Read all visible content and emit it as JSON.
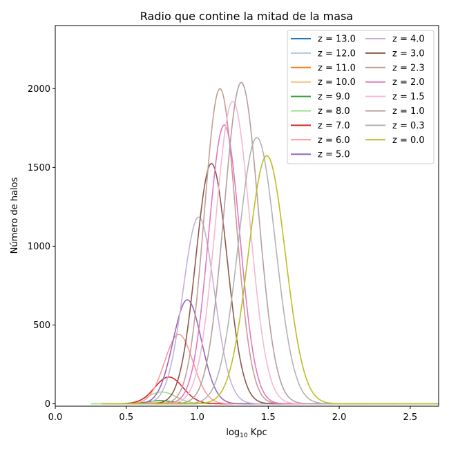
{
  "chart_data": {
    "type": "line",
    "title": "Radio que contine la mitad de la masa",
    "xlabel": "log",
    "xlabel_sub": "10",
    "xlabel_rest": " Kpc",
    "ylabel": "Número de halos",
    "xlim": [
      0.0,
      2.7
    ],
    "ylim": [
      -15,
      2400
    ],
    "xticks": [
      0.0,
      0.5,
      1.0,
      1.5,
      2.0,
      2.5
    ],
    "xtick_labels": [
      "0.0",
      "0.5",
      "1.0",
      "1.5",
      "2.0",
      "2.5"
    ],
    "yticks": [
      0,
      500,
      1000,
      1500,
      2000
    ],
    "ytick_labels": [
      "0",
      "500",
      "1000",
      "1500",
      "2000"
    ],
    "grid": false,
    "legend_position": "top-right",
    "legend_columns": 2,
    "series": [
      {
        "name": "z = 13.0",
        "color": "#1f77b4",
        "peak_x": 0.7,
        "peak_y": 1,
        "sigma": 0.08,
        "x_start": 0.55,
        "x_end": 0.85
      },
      {
        "name": "z = 12.0",
        "color": "#aec7e8",
        "peak_x": 0.7,
        "peak_y": 2,
        "sigma": 0.08,
        "x_start": 0.52,
        "x_end": 0.88
      },
      {
        "name": "z = 11.0",
        "color": "#ff7f0e",
        "peak_x": 0.72,
        "peak_y": 4,
        "sigma": 0.08,
        "x_start": 0.5,
        "x_end": 0.92
      },
      {
        "name": "z = 10.0",
        "color": "#ffbb78",
        "peak_x": 0.73,
        "peak_y": 8,
        "sigma": 0.08,
        "x_start": 0.48,
        "x_end": 0.95
      },
      {
        "name": "z = 9.0",
        "color": "#2ca02c",
        "peak_x": 0.74,
        "peak_y": 20,
        "sigma": 0.09,
        "x_start": 0.4,
        "x_end": 1.0
      },
      {
        "name": "z = 8.0",
        "color": "#98df8a",
        "peak_x": 0.75,
        "peak_y": 75,
        "sigma": 0.1,
        "x_start": 0.25,
        "x_end": 1.1
      },
      {
        "name": "z = 7.0",
        "color": "#d62728",
        "peak_x": 0.8,
        "peak_y": 170,
        "sigma": 0.1,
        "x_start": 0.33,
        "x_end": 1.25
      },
      {
        "name": "z = 6.0",
        "color": "#ff9896",
        "peak_x": 0.87,
        "peak_y": 440,
        "sigma": 0.1,
        "x_start": 0.33,
        "x_end": 1.4
      },
      {
        "name": "z = 5.0",
        "color": "#9467bd",
        "peak_x": 0.93,
        "peak_y": 660,
        "sigma": 0.1,
        "x_start": 0.33,
        "x_end": 1.6
      },
      {
        "name": "z = 4.0",
        "color": "#c5b0d5",
        "peak_x": 1.01,
        "peak_y": 1185,
        "sigma": 0.11,
        "x_start": 0.33,
        "x_end": 1.8
      },
      {
        "name": "z = 3.0",
        "color": "#8c564b",
        "peak_x": 1.1,
        "peak_y": 1525,
        "sigma": 0.11,
        "x_start": 0.33,
        "x_end": 1.9
      },
      {
        "name": "z = 2.3",
        "color": "#c49c94",
        "peak_x": 1.16,
        "peak_y": 2000,
        "sigma": 0.11,
        "x_start": 0.33,
        "x_end": 2.0
      },
      {
        "name": "z = 2.0",
        "color": "#e377c2",
        "peak_x": 1.19,
        "peak_y": 1770,
        "sigma": 0.11,
        "x_start": 0.33,
        "x_end": 2.1
      },
      {
        "name": "z = 1.5",
        "color": "#f7b6d2",
        "peak_x": 1.25,
        "peak_y": 1920,
        "sigma": 0.12,
        "x_start": 0.33,
        "x_end": 2.2
      },
      {
        "name": "z = 1.0",
        "color": "#b79d9d",
        "peak_x": 1.31,
        "peak_y": 2040,
        "sigma": 0.12,
        "x_start": 0.33,
        "x_end": 2.4
      },
      {
        "name": "z = 0.3",
        "color": "#b2b2b2",
        "peak_x": 1.42,
        "peak_y": 1690,
        "sigma": 0.13,
        "x_start": 0.33,
        "x_end": 2.7
      },
      {
        "name": "z = 0.0",
        "color": "#bcbd22",
        "peak_x": 1.49,
        "peak_y": 1575,
        "sigma": 0.13,
        "x_start": 0.33,
        "x_end": 2.7
      }
    ]
  }
}
